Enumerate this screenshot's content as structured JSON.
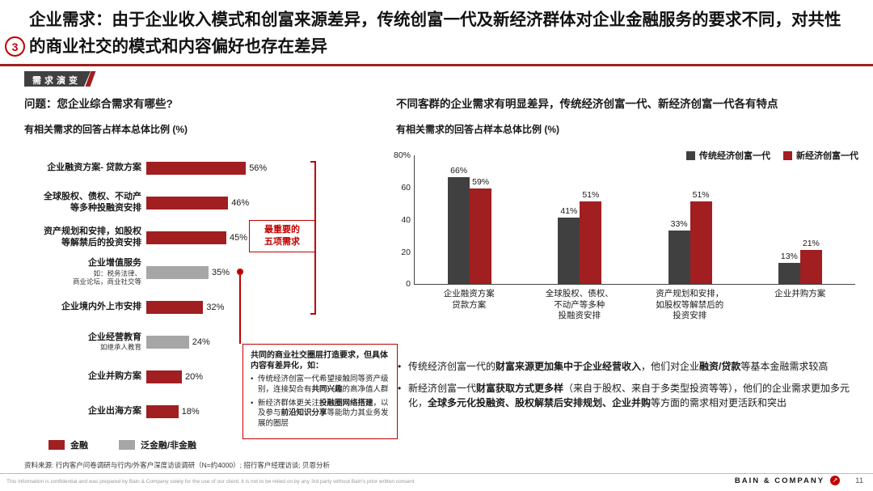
{
  "page": {
    "marker": "3",
    "title": "企业需求：由于企业收入模式和创富来源差异，传统创富一代及新经济群体对企业金融服务的要求不同，对共性的商业社交的模式和内容偏好也存在差异",
    "tag": "需求演变",
    "source": "资料来源: 行内客户问卷调研与行内/外客户深度访谈调研（N=约4000）; 招行客户经理访谈; 贝恩分析",
    "confidential": "This information is confidential and was prepared by Bain & Company solely for the use of our client; it is not to be relied on by any 3rd party without Bain's prior written consent",
    "brand": "BAIN & COMPANY",
    "logo_glyph": "↗",
    "page_number": "11"
  },
  "left": {
    "question": "问题：您企业综合需求有哪些?",
    "subtitle": "有相关需求的回答占样本总体比例 (%)",
    "annotation": "最重要的\n五项需求",
    "legend": [
      {
        "label": "金融",
        "color": "#A11E21"
      },
      {
        "label": "泛金融/非金融",
        "color": "#A6A6A6"
      }
    ],
    "callout": {
      "title": "共同的商业社交圈层打造要求，但具体内容有差异化，如：",
      "bullets": [
        [
          {
            "t": "传统经济创富一代希望接触同等资产级别，连接契合有"
          },
          {
            "t": "共同兴趣",
            "b": true
          },
          {
            "t": "的高净值人群"
          }
        ],
        [
          {
            "t": "新经济群体更关注"
          },
          {
            "t": "投融圈网络搭建",
            "b": true
          },
          {
            "t": "，以及参与"
          },
          {
            "t": "前沿知识分享",
            "b": true
          },
          {
            "t": "等能助力其业务发展的圈层"
          }
        ]
      ]
    }
  },
  "right": {
    "heading": "不同客群的企业需求有明显差异，传统经济创富一代、新经济创富一代各有特点",
    "subtitle": "有相关需求的回答占样本总体比例 (%)",
    "bullets": [
      [
        {
          "t": "传统经济创富一代的"
        },
        {
          "t": "财富来源更加集中于企业经营收入",
          "b": true
        },
        {
          "t": "，他们对企业"
        },
        {
          "t": "融资/贷款",
          "b": true
        },
        {
          "t": "等基本金融需求较高"
        }
      ],
      [
        {
          "t": "新经济创富一代"
        },
        {
          "t": "财富获取方式更多样",
          "b": true
        },
        {
          "t": "（来自于股权、来自于多类型投资等等），他们的企业需求更加多元化，"
        },
        {
          "t": "全球多元化投融资、股权解禁后安排规划、企业并购",
          "b": true
        },
        {
          "t": "等方面的需求相对更活跃和突出"
        }
      ]
    ]
  },
  "chart_data": [
    {
      "type": "bar",
      "orientation": "horizontal",
      "title": "问题：您企业综合需求有哪些?",
      "xlabel": "有相关需求的回答占样本总体比例 (%)",
      "xlim": [
        0,
        60
      ],
      "categories": [
        "企业融资方案- 贷款方案",
        "全球股权、债权、不动产\n等多种投融资安排",
        "资产规划和安排，如股权\n等解禁后的投资安排",
        "企业增值服务",
        "企业境内外上市安排",
        "企业经营教育",
        "企业并购方案",
        "企业出海方案"
      ],
      "category_notes": [
        "",
        "",
        "",
        "如：税务法律、\n商业论坛，商业社交等",
        "",
        "如继承人教育",
        "",
        ""
      ],
      "values": [
        56,
        46,
        45,
        35,
        32,
        24,
        20,
        18
      ],
      "value_labels": [
        "56%",
        "46%",
        "45%",
        "35%",
        "32%",
        "24%",
        "20%",
        "18%"
      ],
      "bar_series": [
        "金融",
        "金融",
        "金融",
        "泛金融/非金融",
        "金融",
        "泛金融/非金融",
        "金融",
        "金融"
      ],
      "bar_colors": [
        "#A11E21",
        "#A11E21",
        "#A11E21",
        "#A6A6A6",
        "#A11E21",
        "#A6A6A6",
        "#A11E21",
        "#A11E21"
      ]
    },
    {
      "type": "bar",
      "orientation": "vertical",
      "title": "不同客群的企业需求有明显差异，传统经济创富一代、新经济创富一代各有特点",
      "ylabel": "有相关需求的回答占样本总体比例 (%)",
      "ylim": [
        0,
        80
      ],
      "ytick_labels": [
        "80%",
        "60",
        "40",
        "20",
        "0"
      ],
      "legend_position": "top-right",
      "categories": [
        "企业融资方案\n贷款方案",
        "全球股权、债权、\n不动产等多种\n投融资安排",
        "资产规划和安排，\n如股权等解禁后的\n投资安排",
        "企业并购方案"
      ],
      "series": [
        {
          "name": "传统经济创富一代",
          "color": "#404040",
          "values": [
            66,
            41,
            33,
            13
          ],
          "value_labels": [
            "66%",
            "41%",
            "33%",
            "13%"
          ]
        },
        {
          "name": "新经济创富一代",
          "color": "#A11E21",
          "values": [
            59,
            51,
            51,
            21
          ],
          "value_labels": [
            "59%",
            "51%",
            "51%",
            "21%"
          ]
        }
      ]
    }
  ]
}
